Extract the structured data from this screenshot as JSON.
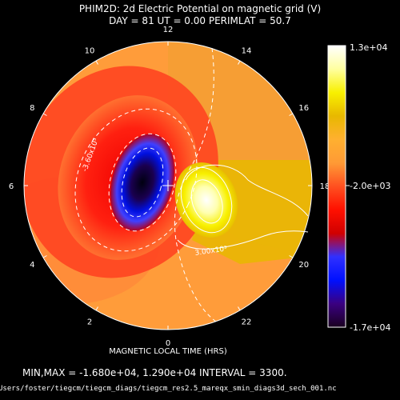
{
  "chart_data": {
    "type": "heatmap",
    "title": "PHIM2D: 2d Electric Potential on magnetic grid (V)",
    "subtitle": "DAY =   81   UT =   0.00   PERIMLAT =   50.7",
    "xlabel": "MAGNETIC LOCAL TIME (HRS)",
    "mlt_tick_labels": [
      "12",
      "10",
      "8",
      "6",
      "4",
      "2",
      "0",
      "22",
      "20",
      "18",
      "16",
      "14"
    ],
    "colorbar": {
      "labels": [
        "1.3e+04",
        "-2.0e+03",
        "-1.7e+04"
      ],
      "range": [
        -17000,
        13000
      ],
      "colors": [
        "#1a0020",
        "#3a0080",
        "#0010ff",
        "#3030ff",
        "#d00000",
        "#ff1000",
        "#ff5020",
        "#ff9a35",
        "#ffb030",
        "#e8b800",
        "#f8f000",
        "#ffffa0",
        "#ffffff"
      ]
    },
    "contour_labels": [
      "-3.60x10³",
      "3.00x10³"
    ],
    "extrema": {
      "min": -16800,
      "max": 12900,
      "interval": 3300
    },
    "stats_text": "MIN,MAX = -1.680e+04, 1.290e+04 INTERVAL =      3300.",
    "file_path": "Users/foster/tiegcm/tiegcm_diags/tiegcm_res2.5_mareqx_smin_diags3d_sech_001.nc"
  }
}
